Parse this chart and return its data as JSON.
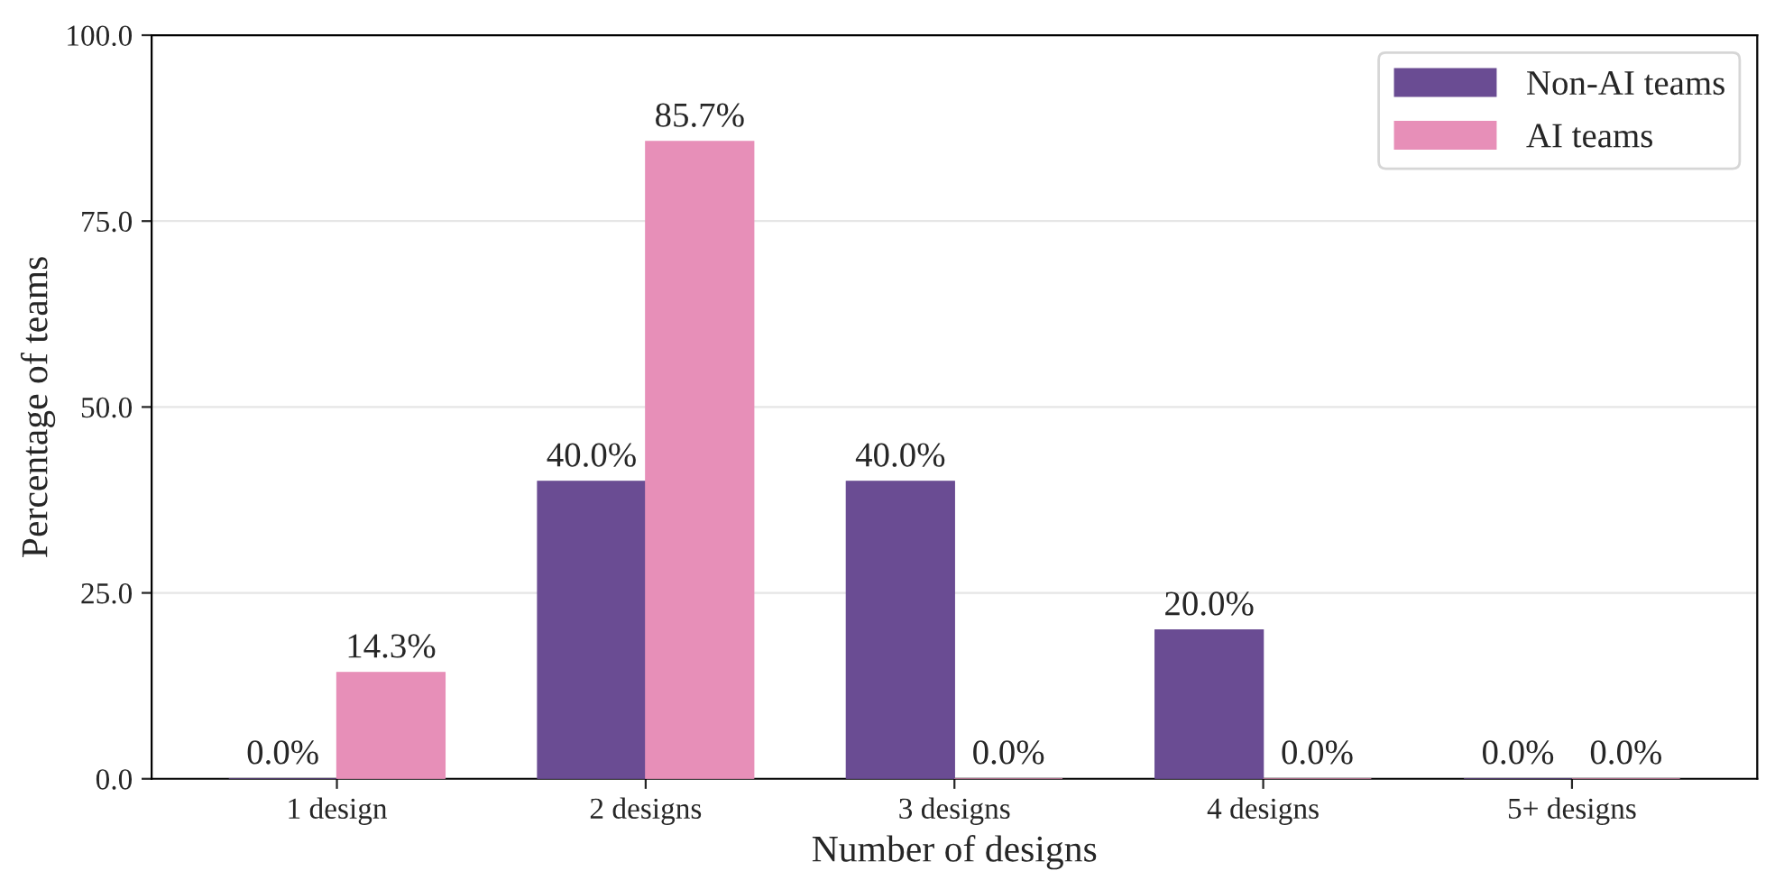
{
  "chart_data": {
    "type": "bar",
    "xlabel": "Number of designs",
    "ylabel": "Percentage of teams",
    "categories": [
      "1 design",
      "2 designs",
      "3 designs",
      "4 designs",
      "5+ designs"
    ],
    "series": [
      {
        "name": "Non-AI teams",
        "color": "#6a4c93",
        "values": [
          0.0,
          40.0,
          40.0,
          20.0,
          0.0
        ],
        "value_labels": [
          "0.0%",
          "40.0%",
          "40.0%",
          "20.0%",
          "0.0%"
        ]
      },
      {
        "name": "AI teams",
        "color": "#e78fb8",
        "values": [
          14.3,
          85.7,
          0.0,
          0.0,
          0.0
        ],
        "value_labels": [
          "14.3%",
          "85.7%",
          "0.0%",
          "0.0%",
          "0.0%"
        ]
      }
    ],
    "ylim": [
      0,
      100
    ],
    "yticks": [
      {
        "value": 0,
        "label": "0.0"
      },
      {
        "value": 25,
        "label": "25.0"
      },
      {
        "value": 50,
        "label": "50.0"
      },
      {
        "value": 75,
        "label": "75.0"
      },
      {
        "value": 100,
        "label": "100.0"
      }
    ],
    "grid": "y",
    "legend": "top right"
  }
}
